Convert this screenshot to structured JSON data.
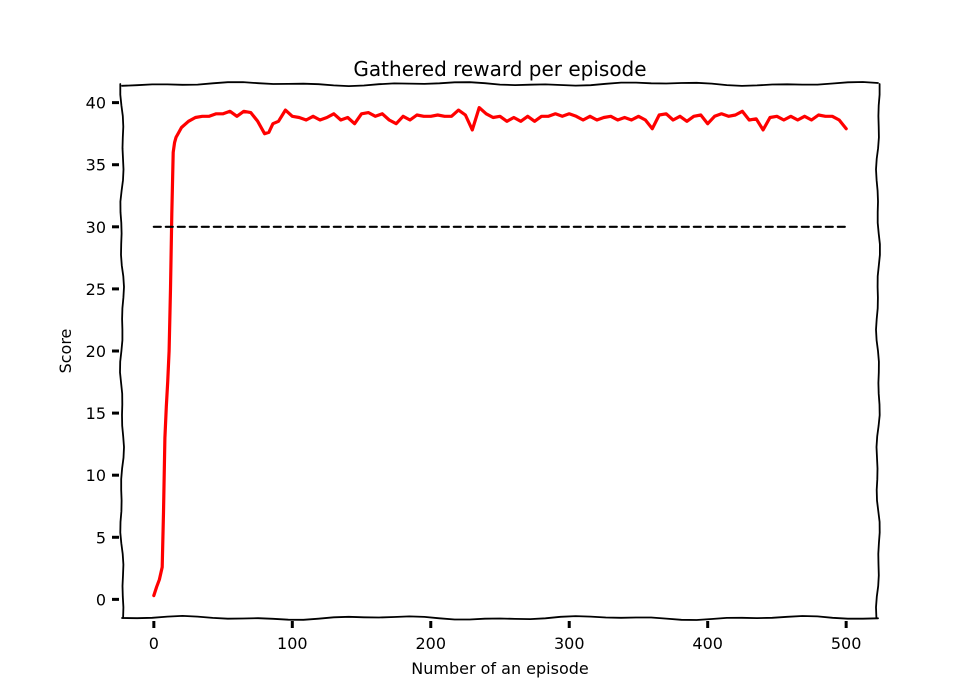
{
  "chart_data": {
    "type": "line",
    "title": "Gathered reward per episode",
    "xlabel": "Number of an episode",
    "ylabel": "Score",
    "xlim": [
      -23,
      523
    ],
    "ylim": [
      -1.5,
      41.5
    ],
    "xticks": [
      0,
      100,
      200,
      300,
      400,
      500
    ],
    "yticks": [
      0,
      5,
      10,
      15,
      20,
      25,
      30,
      35,
      40
    ],
    "grid": false,
    "legend": "none",
    "style": "xkcd",
    "series": [
      {
        "color": "#ff0000",
        "linestyle": "solid",
        "x": [
          0,
          2,
          4,
          6,
          7,
          8,
          9,
          10,
          11,
          12,
          13,
          14,
          15,
          16,
          18,
          20,
          25,
          30,
          35,
          40,
          45,
          50,
          55,
          60,
          65,
          70,
          75,
          80,
          83,
          86,
          90,
          95,
          100,
          105,
          110,
          115,
          120,
          125,
          130,
          135,
          140,
          145,
          150,
          155,
          160,
          165,
          170,
          175,
          180,
          185,
          190,
          195,
          200,
          205,
          210,
          215,
          220,
          225,
          230,
          235,
          240,
          245,
          250,
          255,
          260,
          265,
          270,
          275,
          280,
          285,
          290,
          295,
          300,
          305,
          310,
          315,
          320,
          325,
          330,
          335,
          340,
          345,
          350,
          355,
          360,
          365,
          370,
          375,
          380,
          385,
          390,
          395,
          400,
          405,
          410,
          415,
          420,
          425,
          430,
          435,
          440,
          445,
          450,
          455,
          460,
          465,
          470,
          475,
          480,
          485,
          490,
          495,
          500
        ],
        "values": [
          0.3,
          1.0,
          1.6,
          2.6,
          7.0,
          13.0,
          15.5,
          17.5,
          20.0,
          25.0,
          31.0,
          36.0,
          36.8,
          37.2,
          37.6,
          38.0,
          38.5,
          38.8,
          38.9,
          38.9,
          39.1,
          39.1,
          39.3,
          38.9,
          39.3,
          39.2,
          38.5,
          37.5,
          37.6,
          38.3,
          38.5,
          39.4,
          38.9,
          38.8,
          38.6,
          38.9,
          38.6,
          38.8,
          39.1,
          38.6,
          38.8,
          38.3,
          39.1,
          39.2,
          38.9,
          39.1,
          38.6,
          38.3,
          38.9,
          38.6,
          39.0,
          38.9,
          38.9,
          39.0,
          38.9,
          38.9,
          39.4,
          39.0,
          37.8,
          39.6,
          39.1,
          38.8,
          38.9,
          38.5,
          38.8,
          38.5,
          38.9,
          38.5,
          38.9,
          38.9,
          39.1,
          38.9,
          39.1,
          38.9,
          38.6,
          38.9,
          38.6,
          38.8,
          38.9,
          38.6,
          38.8,
          38.6,
          38.9,
          38.6,
          37.9,
          39.0,
          39.1,
          38.6,
          38.9,
          38.5,
          38.9,
          39.0,
          38.3,
          38.9,
          39.1,
          38.9,
          39.0,
          39.3,
          38.6,
          38.7,
          37.8,
          38.8,
          38.9,
          38.6,
          38.9,
          38.6,
          38.9,
          38.6,
          39.0,
          38.9,
          38.9,
          38.6,
          37.9
        ]
      },
      {
        "color": "#000000",
        "linestyle": "dashed",
        "x": [
          0,
          500
        ],
        "values": [
          30,
          30
        ]
      }
    ]
  }
}
